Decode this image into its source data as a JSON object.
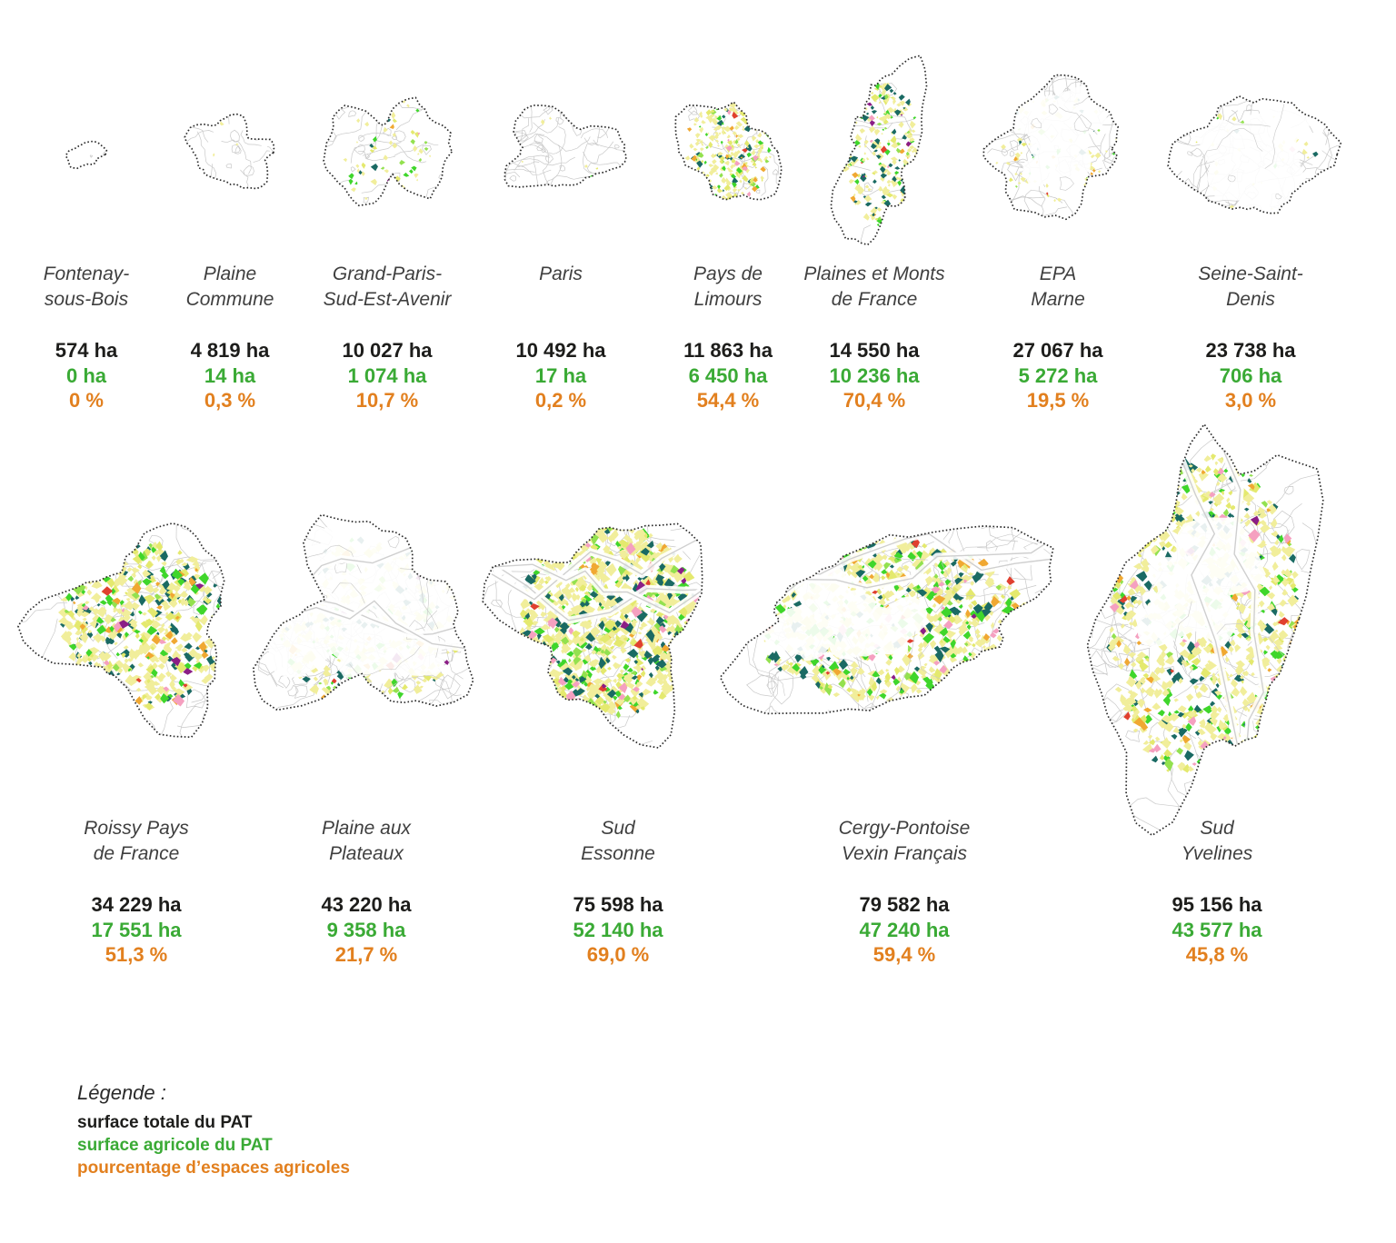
{
  "colors": {
    "background": "#ffffff",
    "total": "#1d1d1b",
    "agri": "#3aaa35",
    "pct": "#e2801f",
    "name": "#3f3f3f",
    "map_outline": "#2b2b2b",
    "map_contour": "#c9c9c9",
    "map_river": "#cfcfcf"
  },
  "map_palette": [
    {
      "name": "pale-yellow",
      "color": "#f1ee9b",
      "weight": 56
    },
    {
      "name": "yellow-green",
      "color": "#e4e96e",
      "weight": 12
    },
    {
      "name": "bright-green",
      "color": "#3fd62b",
      "weight": 10
    },
    {
      "name": "light-green",
      "color": "#93e14f",
      "weight": 4
    },
    {
      "name": "dark-teal",
      "color": "#1a6a63",
      "weight": 9
    },
    {
      "name": "orange",
      "color": "#f0a832",
      "weight": 3.5
    },
    {
      "name": "pink",
      "color": "#f5a0c0",
      "weight": 2
    },
    {
      "name": "purple",
      "color": "#8b1e86",
      "weight": 0.8
    },
    {
      "name": "red",
      "color": "#e0402f",
      "weight": 0.7
    }
  ],
  "territories": [
    {
      "id": "fontenay-sous-bois",
      "name_lines": [
        "Fontenay-",
        "sous-Bois"
      ],
      "total": "574 ha",
      "agri": "0 ha",
      "pct": "0 %"
    },
    {
      "id": "plaine-commune",
      "name_lines": [
        "Plaine",
        "Commune"
      ],
      "total": "4 819 ha",
      "agri": "14 ha",
      "pct": "0,3 %"
    },
    {
      "id": "grand-paris-sud-est-avenir",
      "name_lines": [
        "Grand-Paris-",
        "Sud-Est-Avenir"
      ],
      "total": "10 027 ha",
      "agri": "1 074 ha",
      "pct": "10,7 %"
    },
    {
      "id": "paris",
      "name_lines": [
        "Paris"
      ],
      "total": "10 492 ha",
      "agri": "17 ha",
      "pct": "0,2 %"
    },
    {
      "id": "pays-de-limours",
      "name_lines": [
        "Pays de",
        "Limours"
      ],
      "total": "11 863 ha",
      "agri": "6 450 ha",
      "pct": "54,4 %"
    },
    {
      "id": "plaines-et-monts-de-france",
      "name_lines": [
        "Plaines et Monts",
        "de France"
      ],
      "total": "14 550 ha",
      "agri": "10 236 ha",
      "pct": "70,4 %"
    },
    {
      "id": "epa-marne",
      "name_lines": [
        "EPA",
        "Marne"
      ],
      "total": "27 067 ha",
      "agri": "5 272 ha",
      "pct": "19,5 %"
    },
    {
      "id": "seine-saint-denis",
      "name_lines": [
        "Seine-Saint-",
        "Denis"
      ],
      "total": "23 738 ha",
      "agri": "706 ha",
      "pct": "3,0 %"
    },
    {
      "id": "roissy-pays-de-france",
      "name_lines": [
        "Roissy Pays",
        "de France"
      ],
      "total": "34 229 ha",
      "agri": "17 551 ha",
      "pct": "51,3 %"
    },
    {
      "id": "plaine-aux-plateaux",
      "name_lines": [
        "Plaine aux",
        "Plateaux"
      ],
      "total": "43 220 ha",
      "agri": "9 358 ha",
      "pct": "21,7 %"
    },
    {
      "id": "sud-essonne",
      "name_lines": [
        "Sud",
        "Essonne"
      ],
      "total": "75 598 ha",
      "agri": "52 140 ha",
      "pct": "69,0 %"
    },
    {
      "id": "cergy-pontoise-vexin-francais",
      "name_lines": [
        "Cergy-Pontoise",
        "Vexin Français"
      ],
      "total": "79 582 ha",
      "agri": "47 240 ha",
      "pct": "59,4 %"
    },
    {
      "id": "sud-yvelines",
      "name_lines": [
        "Sud",
        "Yvelines"
      ],
      "total": "95 156 ha",
      "agri": "43 577 ha",
      "pct": "45,8 %"
    }
  ],
  "legend": {
    "title": "Légende :",
    "items": [
      {
        "key": "total",
        "label": "surface totale du PAT"
      },
      {
        "key": "agri",
        "label": "surface agricole du PAT"
      },
      {
        "key": "pct",
        "label": "pourcentage d’espaces agricoles"
      }
    ]
  }
}
